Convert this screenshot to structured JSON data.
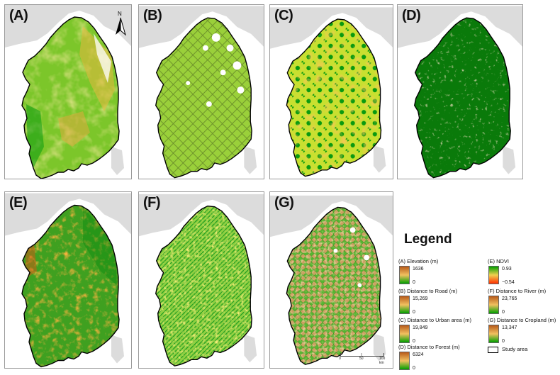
{
  "panels": [
    {
      "id": "A",
      "label": "(A)"
    },
    {
      "id": "B",
      "label": "(B)"
    },
    {
      "id": "C",
      "label": "(C)"
    },
    {
      "id": "D",
      "label": "(D)"
    },
    {
      "id": "E",
      "label": "(E)"
    },
    {
      "id": "F",
      "label": "(F)"
    },
    {
      "id": "G",
      "label": "(G)"
    }
  ],
  "north_arrow": {
    "letter": "N"
  },
  "legend": {
    "title": "Legend",
    "items": [
      {
        "id": "A",
        "name": "(A) Elevation (m)",
        "max": "1636",
        "min": "0",
        "ramp": [
          "#b85a1a",
          "#f0c060",
          "#00a000"
        ]
      },
      {
        "id": "B",
        "name": "(B) Distance to Road (m)",
        "max": "15,269",
        "min": "0",
        "ramp": [
          "#b85a1a",
          "#f0c060",
          "#00a000"
        ]
      },
      {
        "id": "C",
        "name": "(C) Distance to Urban area (m)",
        "max": "19,849",
        "min": "0",
        "ramp": [
          "#b85a1a",
          "#f0c060",
          "#00a000"
        ]
      },
      {
        "id": "D",
        "name": "(D) Distance to Forest (m)",
        "max": "6324",
        "min": "0",
        "ramp": [
          "#b85a1a",
          "#f0c060",
          "#00a000"
        ]
      },
      {
        "id": "E",
        "name": "(E) NDVI",
        "max": "0.93",
        "min": "−0.54",
        "ramp": [
          "#00a000",
          "#f0d050",
          "#ff3000"
        ]
      },
      {
        "id": "F",
        "name": "(F) Distance to River (m)",
        "max": "23,765",
        "min": "0",
        "ramp": [
          "#b85a1a",
          "#f0c060",
          "#00a000"
        ]
      },
      {
        "id": "G",
        "name": "(G) Distance to Cropland (m)",
        "max": "13,347",
        "min": "0",
        "ramp": [
          "#b85a1a",
          "#f0c060",
          "#00a000"
        ]
      }
    ],
    "study_area_label": "Study area"
  },
  "scalebar": {
    "ticks": [
      "0",
      "50",
      "100 km"
    ]
  },
  "colors": {
    "sea": "#ffffff",
    "surrounding_land": "#dcdcdc",
    "study_outline": "#000000"
  }
}
